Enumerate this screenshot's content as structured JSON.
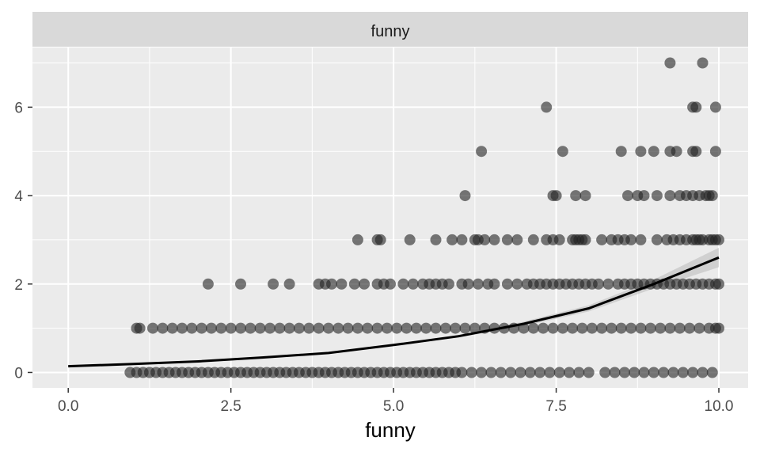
{
  "chart_data": {
    "type": "scatter",
    "facet_label": "funny",
    "xlabel": "funny",
    "ylabel": "",
    "xlim": [
      -0.55,
      10.45
    ],
    "ylim": [
      -0.35,
      7.35
    ],
    "x_ticks": [
      0.0,
      2.5,
      5.0,
      7.5,
      10.0
    ],
    "x_tick_labels": [
      "0.0",
      "2.5",
      "5.0",
      "7.5",
      "10.0"
    ],
    "y_ticks": [
      0,
      2,
      4,
      6
    ],
    "y_tick_labels": [
      "0",
      "2",
      "4",
      "6"
    ],
    "grid": true,
    "colors": {
      "panel_bg": "#EBEBEB",
      "strip_bg": "#D9D9D9",
      "grid": "#FFFFFF",
      "points": "#222222",
      "smooth_line": "#000000",
      "ribbon": "#BEBEBE"
    },
    "points": [
      [
        9.25,
        7
      ],
      [
        9.75,
        7
      ],
      [
        7.35,
        6
      ],
      [
        9.6,
        6
      ],
      [
        9.65,
        6
      ],
      [
        9.95,
        6
      ],
      [
        6.35,
        5
      ],
      [
        7.6,
        5
      ],
      [
        8.5,
        5
      ],
      [
        8.8,
        5
      ],
      [
        9.0,
        5
      ],
      [
        9.25,
        5
      ],
      [
        9.35,
        5
      ],
      [
        9.6,
        5
      ],
      [
        9.65,
        5
      ],
      [
        9.95,
        5
      ],
      [
        6.1,
        4
      ],
      [
        7.45,
        4
      ],
      [
        7.5,
        4
      ],
      [
        7.8,
        4
      ],
      [
        7.95,
        4
      ],
      [
        8.6,
        4
      ],
      [
        8.75,
        4
      ],
      [
        8.85,
        4
      ],
      [
        9.05,
        4
      ],
      [
        9.25,
        4
      ],
      [
        9.4,
        4
      ],
      [
        9.5,
        4
      ],
      [
        9.6,
        4
      ],
      [
        9.7,
        4
      ],
      [
        9.8,
        4
      ],
      [
        9.85,
        4
      ],
      [
        9.9,
        4
      ],
      [
        4.45,
        3
      ],
      [
        4.75,
        3
      ],
      [
        4.8,
        3
      ],
      [
        5.25,
        3
      ],
      [
        5.65,
        3
      ],
      [
        5.9,
        3
      ],
      [
        6.05,
        3
      ],
      [
        6.25,
        3
      ],
      [
        6.3,
        3
      ],
      [
        6.4,
        3
      ],
      [
        6.55,
        3
      ],
      [
        6.75,
        3
      ],
      [
        6.9,
        3
      ],
      [
        7.15,
        3
      ],
      [
        7.35,
        3
      ],
      [
        7.45,
        3
      ],
      [
        7.55,
        3
      ],
      [
        7.75,
        3
      ],
      [
        7.8,
        3
      ],
      [
        7.85,
        3
      ],
      [
        7.9,
        3
      ],
      [
        7.95,
        3
      ],
      [
        8.2,
        3
      ],
      [
        8.35,
        3
      ],
      [
        8.45,
        3
      ],
      [
        8.55,
        3
      ],
      [
        8.65,
        3
      ],
      [
        8.8,
        3
      ],
      [
        9.05,
        3
      ],
      [
        9.2,
        3
      ],
      [
        9.3,
        3
      ],
      [
        9.4,
        3
      ],
      [
        9.5,
        3
      ],
      [
        9.6,
        3
      ],
      [
        9.65,
        3
      ],
      [
        9.7,
        3
      ],
      [
        9.75,
        3
      ],
      [
        9.85,
        3
      ],
      [
        9.9,
        3
      ],
      [
        9.95,
        3
      ],
      [
        10.0,
        3
      ],
      [
        2.15,
        2
      ],
      [
        2.65,
        2
      ],
      [
        3.15,
        2
      ],
      [
        3.4,
        2
      ],
      [
        3.85,
        2
      ],
      [
        3.95,
        2
      ],
      [
        4.05,
        2
      ],
      [
        4.2,
        2
      ],
      [
        4.4,
        2
      ],
      [
        4.55,
        2
      ],
      [
        4.75,
        2
      ],
      [
        4.85,
        2
      ],
      [
        4.95,
        2
      ],
      [
        5.15,
        2
      ],
      [
        5.3,
        2
      ],
      [
        5.45,
        2
      ],
      [
        5.55,
        2
      ],
      [
        5.65,
        2
      ],
      [
        5.75,
        2
      ],
      [
        5.85,
        2
      ],
      [
        6.05,
        2
      ],
      [
        6.15,
        2
      ],
      [
        6.3,
        2
      ],
      [
        6.45,
        2
      ],
      [
        6.55,
        2
      ],
      [
        6.75,
        2
      ],
      [
        6.9,
        2
      ],
      [
        7.05,
        2
      ],
      [
        7.15,
        2
      ],
      [
        7.25,
        2
      ],
      [
        7.35,
        2
      ],
      [
        7.45,
        2
      ],
      [
        7.55,
        2
      ],
      [
        7.65,
        2
      ],
      [
        7.75,
        2
      ],
      [
        7.85,
        2
      ],
      [
        7.95,
        2
      ],
      [
        8.05,
        2
      ],
      [
        8.15,
        2
      ],
      [
        8.3,
        2
      ],
      [
        8.45,
        2
      ],
      [
        8.55,
        2
      ],
      [
        8.65,
        2
      ],
      [
        8.75,
        2
      ],
      [
        8.85,
        2
      ],
      [
        8.95,
        2
      ],
      [
        9.05,
        2
      ],
      [
        9.15,
        2
      ],
      [
        9.25,
        2
      ],
      [
        9.35,
        2
      ],
      [
        9.45,
        2
      ],
      [
        9.55,
        2
      ],
      [
        9.65,
        2
      ],
      [
        9.75,
        2
      ],
      [
        9.85,
        2
      ],
      [
        9.95,
        2
      ],
      [
        10.0,
        2
      ],
      [
        1.05,
        1
      ],
      [
        1.1,
        1
      ],
      [
        1.3,
        1
      ],
      [
        1.45,
        1
      ],
      [
        1.6,
        1
      ],
      [
        1.75,
        1
      ],
      [
        1.9,
        1
      ],
      [
        2.05,
        1
      ],
      [
        2.2,
        1
      ],
      [
        2.35,
        1
      ],
      [
        2.5,
        1
      ],
      [
        2.65,
        1
      ],
      [
        2.8,
        1
      ],
      [
        2.95,
        1
      ],
      [
        3.1,
        1
      ],
      [
        3.25,
        1
      ],
      [
        3.4,
        1
      ],
      [
        3.55,
        1
      ],
      [
        3.7,
        1
      ],
      [
        3.85,
        1
      ],
      [
        4.0,
        1
      ],
      [
        4.15,
        1
      ],
      [
        4.3,
        1
      ],
      [
        4.45,
        1
      ],
      [
        4.6,
        1
      ],
      [
        4.75,
        1
      ],
      [
        4.9,
        1
      ],
      [
        5.05,
        1
      ],
      [
        5.2,
        1
      ],
      [
        5.35,
        1
      ],
      [
        5.5,
        1
      ],
      [
        5.65,
        1
      ],
      [
        5.8,
        1
      ],
      [
        5.95,
        1
      ],
      [
        6.1,
        1
      ],
      [
        6.25,
        1
      ],
      [
        6.4,
        1
      ],
      [
        6.55,
        1
      ],
      [
        6.7,
        1
      ],
      [
        6.85,
        1
      ],
      [
        7.0,
        1
      ],
      [
        7.15,
        1
      ],
      [
        7.3,
        1
      ],
      [
        7.45,
        1
      ],
      [
        7.6,
        1
      ],
      [
        7.75,
        1
      ],
      [
        7.9,
        1
      ],
      [
        8.05,
        1
      ],
      [
        8.2,
        1
      ],
      [
        8.35,
        1
      ],
      [
        8.5,
        1
      ],
      [
        8.65,
        1
      ],
      [
        8.8,
        1
      ],
      [
        8.95,
        1
      ],
      [
        9.1,
        1
      ],
      [
        9.25,
        1
      ],
      [
        9.4,
        1
      ],
      [
        9.55,
        1
      ],
      [
        9.7,
        1
      ],
      [
        9.85,
        1
      ],
      [
        9.95,
        1
      ],
      [
        10.0,
        1
      ],
      [
        0.95,
        0
      ],
      [
        1.05,
        0
      ],
      [
        1.15,
        0
      ],
      [
        1.25,
        0
      ],
      [
        1.35,
        0
      ],
      [
        1.45,
        0
      ],
      [
        1.55,
        0
      ],
      [
        1.65,
        0
      ],
      [
        1.75,
        0
      ],
      [
        1.85,
        0
      ],
      [
        1.95,
        0
      ],
      [
        2.05,
        0
      ],
      [
        2.15,
        0
      ],
      [
        2.25,
        0
      ],
      [
        2.35,
        0
      ],
      [
        2.45,
        0
      ],
      [
        2.55,
        0
      ],
      [
        2.65,
        0
      ],
      [
        2.75,
        0
      ],
      [
        2.85,
        0
      ],
      [
        2.95,
        0
      ],
      [
        3.05,
        0
      ],
      [
        3.15,
        0
      ],
      [
        3.25,
        0
      ],
      [
        3.35,
        0
      ],
      [
        3.45,
        0
      ],
      [
        3.55,
        0
      ],
      [
        3.65,
        0
      ],
      [
        3.75,
        0
      ],
      [
        3.85,
        0
      ],
      [
        3.95,
        0
      ],
      [
        4.05,
        0
      ],
      [
        4.15,
        0
      ],
      [
        4.25,
        0
      ],
      [
        4.35,
        0
      ],
      [
        4.45,
        0
      ],
      [
        4.55,
        0
      ],
      [
        4.65,
        0
      ],
      [
        4.75,
        0
      ],
      [
        4.85,
        0
      ],
      [
        4.95,
        0
      ],
      [
        5.05,
        0
      ],
      [
        5.15,
        0
      ],
      [
        5.25,
        0
      ],
      [
        5.35,
        0
      ],
      [
        5.45,
        0
      ],
      [
        5.55,
        0
      ],
      [
        5.65,
        0
      ],
      [
        5.75,
        0
      ],
      [
        5.85,
        0
      ],
      [
        5.95,
        0
      ],
      [
        6.05,
        0
      ],
      [
        6.2,
        0
      ],
      [
        6.35,
        0
      ],
      [
        6.5,
        0
      ],
      [
        6.65,
        0
      ],
      [
        6.8,
        0
      ],
      [
        6.95,
        0
      ],
      [
        7.1,
        0
      ],
      [
        7.25,
        0
      ],
      [
        7.4,
        0
      ],
      [
        7.55,
        0
      ],
      [
        7.7,
        0
      ],
      [
        7.85,
        0
      ],
      [
        8.0,
        0
      ],
      [
        8.25,
        0
      ],
      [
        8.4,
        0
      ],
      [
        8.55,
        0
      ],
      [
        8.7,
        0
      ],
      [
        8.85,
        0
      ],
      [
        9.0,
        0
      ],
      [
        9.15,
        0
      ],
      [
        9.3,
        0
      ],
      [
        9.45,
        0
      ],
      [
        9.6,
        0
      ],
      [
        9.75,
        0
      ],
      [
        9.9,
        0
      ]
    ],
    "smooth": {
      "x": [
        0,
        1,
        2,
        3,
        4,
        5,
        6,
        7,
        8,
        9,
        10
      ],
      "y": [
        0.14,
        0.19,
        0.25,
        0.34,
        0.44,
        0.62,
        0.82,
        1.1,
        1.45,
        2.0,
        2.6
      ],
      "se": [
        0.03,
        0.02,
        0.02,
        0.02,
        0.02,
        0.02,
        0.03,
        0.05,
        0.07,
        0.1,
        0.22
      ]
    }
  }
}
